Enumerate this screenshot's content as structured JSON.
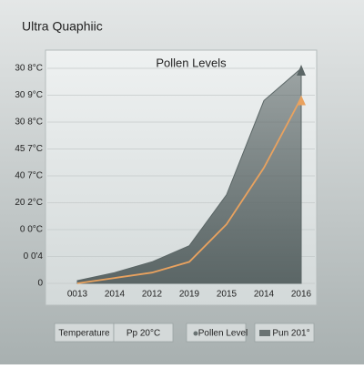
{
  "app_title": "Ultra Quaphiic",
  "chart_data": {
    "type": "area-line",
    "title": "Pollen Levels",
    "categories": [
      "0013",
      "2014",
      "2012",
      "2019",
      "2015",
      "2014",
      "2016"
    ],
    "series": [
      {
        "kind": "area",
        "color": "#5b6666",
        "values": [
          0.1,
          0.4,
          0.8,
          1.4,
          3.3,
          6.8,
          8
        ]
      },
      {
        "kind": "line",
        "color": "#e9a25f",
        "values": [
          0,
          0.2,
          0.4,
          0.8,
          2.2,
          4.3,
          6.9
        ]
      }
    ],
    "ylim": [
      0,
      8
    ],
    "yticks": [
      0,
      {
        "value": 1,
        "label": "0 0'4"
      },
      {
        "value": 2,
        "label": "0 0°C"
      },
      {
        "value": 3,
        "label": "20 2°C"
      },
      {
        "value": 4,
        "label": "40 7°C"
      },
      {
        "value": 5,
        "label": "45 7°C"
      },
      {
        "value": 6,
        "label": "30 8°C"
      },
      {
        "value": 7,
        "label": "30 9°C"
      },
      {
        "value": 8,
        "label": "30 8°C"
      }
    ],
    "grid": true,
    "legend": [
      "Temperature",
      "Pp 20°C",
      "Pollen Level",
      "Pun 201°"
    ]
  }
}
